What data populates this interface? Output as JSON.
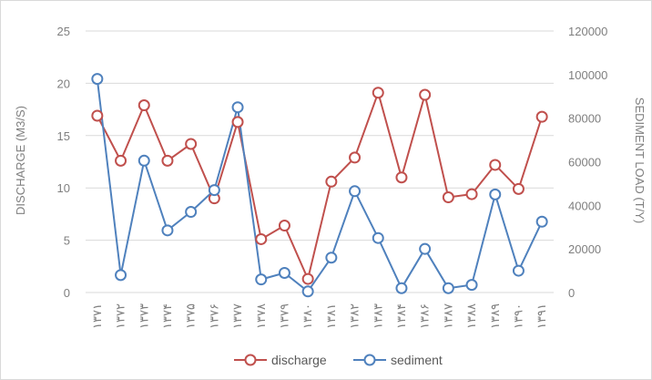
{
  "chart_data": {
    "type": "line",
    "categories": [
      "۱۳۷۱",
      "۱۳۷۲",
      "۱۳۷۳",
      "۱۳۷۴",
      "۱۳۷۵",
      "۱۳۷۶",
      "۱۳۷۷",
      "۱۳۷۸",
      "۱۳۷۹",
      "۱۳۸۰",
      "۱۳۸۱",
      "۱۳۸۲",
      "۱۳۸۳",
      "۱۳۸۴",
      "۱۳۸۶",
      "۱۳۸۷",
      "۱۳۸۸",
      "۱۳۸۹",
      "۱۳۹۰",
      "۱۳۹۱"
    ],
    "series": [
      {
        "name": "discharge",
        "axis": "left",
        "color": "#c0504d",
        "values": [
          16.9,
          12.6,
          17.9,
          12.6,
          14.2,
          9.0,
          16.3,
          5.1,
          6.4,
          1.3,
          10.6,
          12.9,
          19.1,
          11.0,
          18.9,
          9.1,
          9.4,
          12.2,
          9.9,
          16.8
        ]
      },
      {
        "name": "sediment",
        "axis": "right",
        "color": "#4f81bd",
        "values": [
          98000,
          8000,
          60500,
          28500,
          37000,
          47000,
          85000,
          6000,
          9000,
          500,
          16000,
          46500,
          25000,
          2000,
          20000,
          2000,
          3500,
          45000,
          10000,
          32500
        ]
      }
    ],
    "y_left": {
      "label": "DISCHARGE (M3/S)",
      "range": [
        0,
        25
      ],
      "ticks": [
        "0",
        "5",
        "10",
        "15",
        "20",
        "25"
      ]
    },
    "y_right": {
      "label": "SEDIMENT LOAD (T/Y)",
      "range": [
        0,
        120000
      ],
      "ticks": [
        "0",
        "20000",
        "40000",
        "60000",
        "80000",
        "100000",
        "120000"
      ]
    },
    "grid": "horizontal",
    "legend": "bottom",
    "gridColor": "#d9d9d9",
    "textColor": "#7f7f7f"
  }
}
